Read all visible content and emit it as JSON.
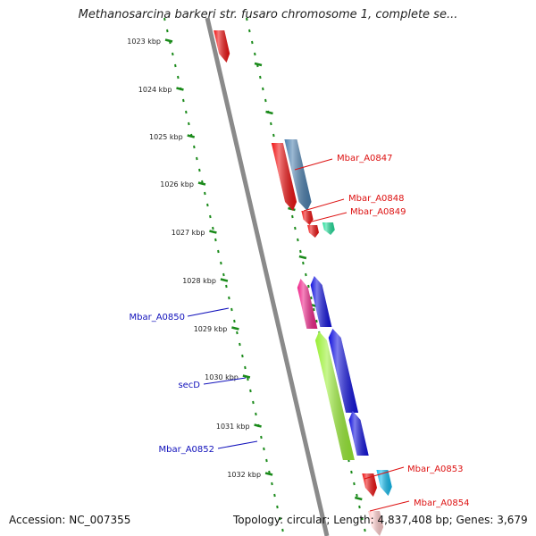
{
  "title": "Methanosarcina barkeri str. fusaro chromosome 1, complete se...",
  "footer": {
    "accession": "Accession: NC_007355",
    "topology": "Topology: circular; Length: 4,837,408 bp; Genes: 3,679"
  },
  "ruler": {
    "ticks": [
      "1023 kbp",
      "1024 kbp",
      "1025 kbp",
      "1026 kbp",
      "1027 kbp",
      "1028 kbp",
      "1029 kbp",
      "1030 kbp",
      "1031 kbp",
      "1032 kbp"
    ]
  },
  "colors": {
    "backbone": "#8a8a8a",
    "ruler_dots": "#1a8a1a",
    "label_forward": "#dd1111",
    "label_reverse": "#1111bb"
  },
  "genes": [
    {
      "name": "",
      "strand": "+",
      "track": 1,
      "color": "#ee1111"
    },
    {
      "name": "",
      "strand": "+",
      "track": 1,
      "color": "#ee1111"
    },
    {
      "name": "Mbar_A0847",
      "strand": "+",
      "track": 2,
      "color": "#4a7fae"
    },
    {
      "name": "Mbar_A0848",
      "strand": "+",
      "track": 1,
      "color": "#ee1111"
    },
    {
      "name": "Mbar_A0849",
      "strand": "+",
      "track": 2,
      "color": "#22dd99"
    },
    {
      "name": "",
      "strand": "+",
      "track": 1,
      "color": "#ee1111"
    },
    {
      "name": "Mbar_A0850",
      "strand": "-",
      "track": 2,
      "color": "#ee2288"
    },
    {
      "name": "",
      "strand": "-",
      "track": 1,
      "color": "#1111dd"
    },
    {
      "name": "secD",
      "strand": "-",
      "track": 2,
      "color": "#99ee33"
    },
    {
      "name": "",
      "strand": "-",
      "track": 1,
      "color": "#1111dd"
    },
    {
      "name": "Mbar_A0852",
      "strand": "-",
      "track": 1,
      "color": "#1111dd"
    },
    {
      "name": "",
      "strand": "+",
      "track": 1,
      "color": "#ee1111"
    },
    {
      "name": "Mbar_A0853",
      "strand": "+",
      "track": 2,
      "color": "#11bbee"
    },
    {
      "name": "Mbar_A0854",
      "strand": "+",
      "track": 1,
      "color": "#ffcccc"
    }
  ]
}
